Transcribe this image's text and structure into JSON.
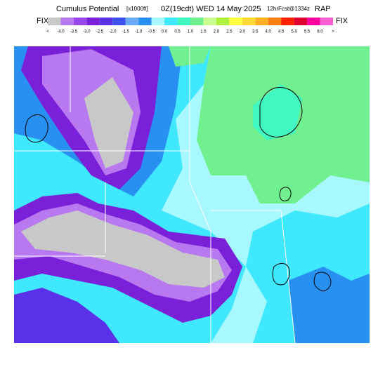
{
  "header": {
    "title_main": "Cumulus Potential",
    "units": "[x1000ft]",
    "valid": "0Z(19cdt) WED 14 May 2025",
    "forecast": "12hrFcst@1334z",
    "model": "RAP"
  },
  "legend": {
    "left_label": "FIX",
    "right_label": "FIX",
    "labels": [
      "<",
      "-4.0",
      "-3.5",
      "-3.0",
      "-2.5",
      "-2.0",
      "-1.5",
      "-1.0",
      "-0.5",
      "0.0",
      "0.5",
      "1.0",
      "1.5",
      "2.0",
      "2.5",
      "3.0",
      "3.5",
      "4.0",
      "4.5",
      "5.0",
      "5.5",
      "6.0",
      ">"
    ],
    "colors": [
      "#c8c8c8",
      "#b878f0",
      "#9848e8",
      "#7a20d8",
      "#5a30e8",
      "#3c50f0",
      "#6aaaf8",
      "#2890f0",
      "#a8f8ff",
      "#40e8ff",
      "#40f8c0",
      "#70f090",
      "#c8ff90",
      "#b0f040",
      "#ffff40",
      "#ffd830",
      "#ffb020",
      "#ff8010",
      "#ff2000",
      "#e00030",
      "#ff00a0",
      "#ff60d0"
    ]
  }
}
